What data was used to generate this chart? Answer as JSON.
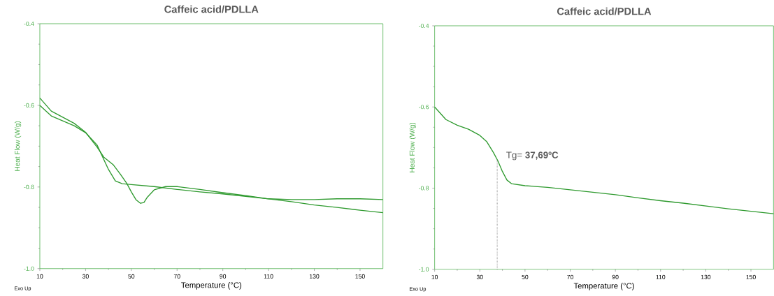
{
  "chart_data": [
    {
      "type": "line",
      "title": "Caffeic acid/PDLLA",
      "xlabel": "Temperature (°C)",
      "ylabel": "Heat Flow (W/g)",
      "annotations": [
        "Exo Up"
      ],
      "xlim": [
        10,
        160
      ],
      "ylim": [
        -1.0,
        -0.4
      ],
      "xticks": [
        10,
        30,
        50,
        70,
        90,
        110,
        130,
        150
      ],
      "yticks": [
        {
          "value": -1.0,
          "label": "-1.0"
        },
        {
          "value": -0.8,
          "label": "-0.8"
        },
        {
          "value": -0.6,
          "label": "-0.6"
        },
        {
          "value": -0.4,
          "label": "-0.4"
        }
      ],
      "series": [
        {
          "color": "#2f9a2f",
          "x": [
            10,
            15,
            20,
            25,
            30,
            35,
            38,
            42,
            45,
            48,
            50,
            52,
            54,
            55.5,
            57,
            60,
            65,
            70,
            80,
            90,
            100,
            110,
            120,
            130,
            140,
            150,
            160
          ],
          "values": [
            -0.582,
            -0.614,
            -0.629,
            -0.644,
            -0.666,
            -0.702,
            -0.727,
            -0.745,
            -0.767,
            -0.791,
            -0.812,
            -0.831,
            -0.84,
            -0.838,
            -0.825,
            -0.807,
            -0.799,
            -0.799,
            -0.806,
            -0.814,
            -0.821,
            -0.829,
            -0.831,
            -0.831,
            -0.829,
            -0.829,
            -0.831
          ]
        },
        {
          "color": "#2f9a2f",
          "x": [
            10,
            15,
            20,
            25,
            30,
            35,
            40,
            43,
            46,
            50,
            60,
            70,
            80,
            90,
            100,
            110,
            120,
            130,
            140,
            150,
            160
          ],
          "values": [
            -0.6,
            -0.626,
            -0.638,
            -0.65,
            -0.667,
            -0.697,
            -0.757,
            -0.785,
            -0.792,
            -0.794,
            -0.799,
            -0.806,
            -0.812,
            -0.817,
            -0.823,
            -0.829,
            -0.836,
            -0.844,
            -0.85,
            -0.857,
            -0.863
          ]
        }
      ]
    },
    {
      "type": "line",
      "title": "Caffeic acid/PDLLA",
      "xlabel": "Temperature (°C)",
      "ylabel": "Heat Flow (W/g)",
      "annotations": [
        "Exo Up"
      ],
      "xlim": [
        10,
        160
      ],
      "ylim": [
        -1.0,
        -0.4
      ],
      "xticks": [
        10,
        30,
        50,
        70,
        90,
        110,
        130,
        150
      ],
      "yticks": [
        {
          "value": -1.0,
          "label": "-1.0"
        },
        {
          "value": -0.8,
          "label": "-0.8"
        },
        {
          "value": -0.6,
          "label": "-0.6"
        },
        {
          "value": -0.4,
          "label": "-0.4"
        }
      ],
      "ref_lines": [
        {
          "axis": "x",
          "value": 37.69,
          "label": "Tg= **37,69ºC**",
          "color": "#555555",
          "line_style": "dotted"
        }
      ],
      "series": [
        {
          "color": "#2f9a2f",
          "x": [
            10,
            15,
            20,
            25,
            30,
            33,
            36,
            38,
            40,
            42,
            44,
            50,
            60,
            70,
            80,
            90,
            100,
            110,
            120,
            130,
            140,
            150,
            160
          ],
          "values": [
            -0.6,
            -0.631,
            -0.645,
            -0.655,
            -0.67,
            -0.685,
            -0.712,
            -0.733,
            -0.759,
            -0.78,
            -0.789,
            -0.794,
            -0.798,
            -0.804,
            -0.81,
            -0.816,
            -0.824,
            -0.831,
            -0.837,
            -0.844,
            -0.851,
            -0.857,
            -0.863
          ]
        }
      ]
    }
  ]
}
